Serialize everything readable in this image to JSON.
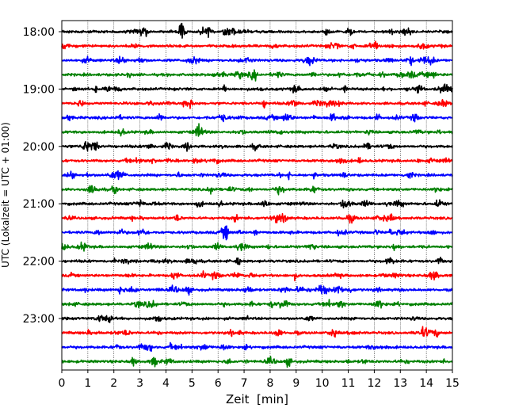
{
  "chart_data": {
    "type": "line",
    "title": "",
    "xlabel": "Zeit  [min]",
    "ylabel": "UTC (Lokalzeit = UTC + 01:00)",
    "xlim": [
      0,
      15
    ],
    "x_ticks": [
      "0",
      "1",
      "2",
      "3",
      "4",
      "5",
      "6",
      "7",
      "8",
      "9",
      "10",
      "11",
      "12",
      "13",
      "14",
      "15"
    ],
    "y_ticks": [
      "18:00",
      "19:00",
      "20:00",
      "21:00",
      "22:00",
      "23:00"
    ],
    "rows_per_hour": 4,
    "grid": "vertical dotted",
    "trace_colors": [
      "#000000",
      "#ff0000",
      "#0000ff",
      "#008000"
    ],
    "traces": [
      {
        "start": "18:00"
      },
      {
        "start": "18:15"
      },
      {
        "start": "18:30"
      },
      {
        "start": "18:45"
      },
      {
        "start": "19:00"
      },
      {
        "start": "19:15"
      },
      {
        "start": "19:30"
      },
      {
        "start": "19:45"
      },
      {
        "start": "20:00"
      },
      {
        "start": "20:15"
      },
      {
        "start": "20:30"
      },
      {
        "start": "20:45"
      },
      {
        "start": "21:00"
      },
      {
        "start": "21:15"
      },
      {
        "start": "21:30"
      },
      {
        "start": "21:45"
      },
      {
        "start": "22:00"
      },
      {
        "start": "22:15"
      },
      {
        "start": "22:30"
      },
      {
        "start": "22:45"
      },
      {
        "start": "23:00"
      },
      {
        "start": "23:15"
      },
      {
        "start": "23:30"
      },
      {
        "start": "23:45"
      }
    ]
  }
}
